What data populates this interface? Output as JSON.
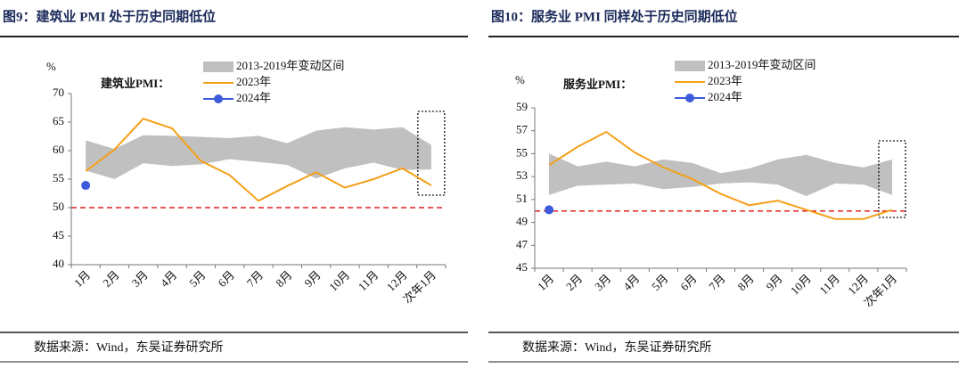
{
  "chart_data": [
    {
      "type": "line",
      "title": "图9：建筑业 PMI 处于历史同期低位",
      "unit": "%",
      "annotation": "建筑业PMI：",
      "source": "数据来源：Wind，东吴证券研究所",
      "categories": [
        "1月",
        "2月",
        "3月",
        "4月",
        "5月",
        "6月",
        "7月",
        "8月",
        "9月",
        "10月",
        "11月",
        "12月",
        "次年1月"
      ],
      "ylim": [
        40,
        70
      ],
      "yticks": [
        40,
        45,
        50,
        55,
        60,
        65,
        70
      ],
      "reference_line": {
        "value": 50,
        "color": "#e02020"
      },
      "band": {
        "name": "2013-2019年变动区间",
        "color": "#c0c0c0",
        "upper": [
          61.8,
          60.3,
          62.7,
          62.6,
          62.4,
          62.2,
          62.6,
          61.3,
          63.5,
          64.1,
          63.7,
          64.1,
          61.0
        ],
        "lower": [
          56.5,
          55.0,
          57.8,
          57.3,
          57.6,
          58.5,
          58.0,
          57.5,
          55.1,
          56.9,
          57.9,
          56.6,
          56.7
        ]
      },
      "series": [
        {
          "name": "2023年",
          "color": "#f5a01a",
          "values": [
            56.4,
            60.2,
            65.6,
            63.9,
            58.2,
            55.7,
            51.2,
            53.8,
            56.2,
            53.5,
            55.0,
            56.9,
            53.9
          ]
        },
        {
          "name": "2024年",
          "color": "#3b5bdb",
          "values": [
            53.9,
            null,
            null,
            null,
            null,
            null,
            null,
            null,
            null,
            null,
            null,
            null,
            null
          ]
        }
      ]
    },
    {
      "type": "line",
      "title": "图10：服务业 PMI 同样处于历史同期低位",
      "unit": "%",
      "annotation": "服务业PMI：",
      "source": "数据来源：Wind，东吴证券研究所",
      "categories": [
        "1月",
        "2月",
        "3月",
        "4月",
        "5月",
        "6月",
        "7月",
        "8月",
        "9月",
        "10月",
        "11月",
        "12月",
        "次年1月"
      ],
      "ylim": [
        45,
        59
      ],
      "yticks": [
        45,
        47,
        49,
        51,
        53,
        55,
        57,
        59
      ],
      "reference_line": {
        "value": 50,
        "color": "#e02020"
      },
      "band": {
        "name": "2013-2019年变动区间",
        "color": "#c0c0c0",
        "upper": [
          55.0,
          53.9,
          54.3,
          53.9,
          54.5,
          54.2,
          53.3,
          53.7,
          54.5,
          54.9,
          54.2,
          53.8,
          54.5
        ],
        "lower": [
          51.4,
          52.2,
          52.3,
          52.4,
          51.9,
          52.1,
          52.4,
          52.5,
          52.3,
          51.3,
          52.4,
          52.3,
          51.4
        ]
      },
      "series": [
        {
          "name": "2023年",
          "color": "#f5a01a",
          "values": [
            54.0,
            55.6,
            56.9,
            55.1,
            53.8,
            52.8,
            51.5,
            50.5,
            50.9,
            50.1,
            49.3,
            49.3,
            50.1
          ]
        },
        {
          "name": "2024年",
          "color": "#3b5bdb",
          "values": [
            50.1,
            null,
            null,
            null,
            null,
            null,
            null,
            null,
            null,
            null,
            null,
            null,
            null
          ]
        }
      ]
    }
  ]
}
